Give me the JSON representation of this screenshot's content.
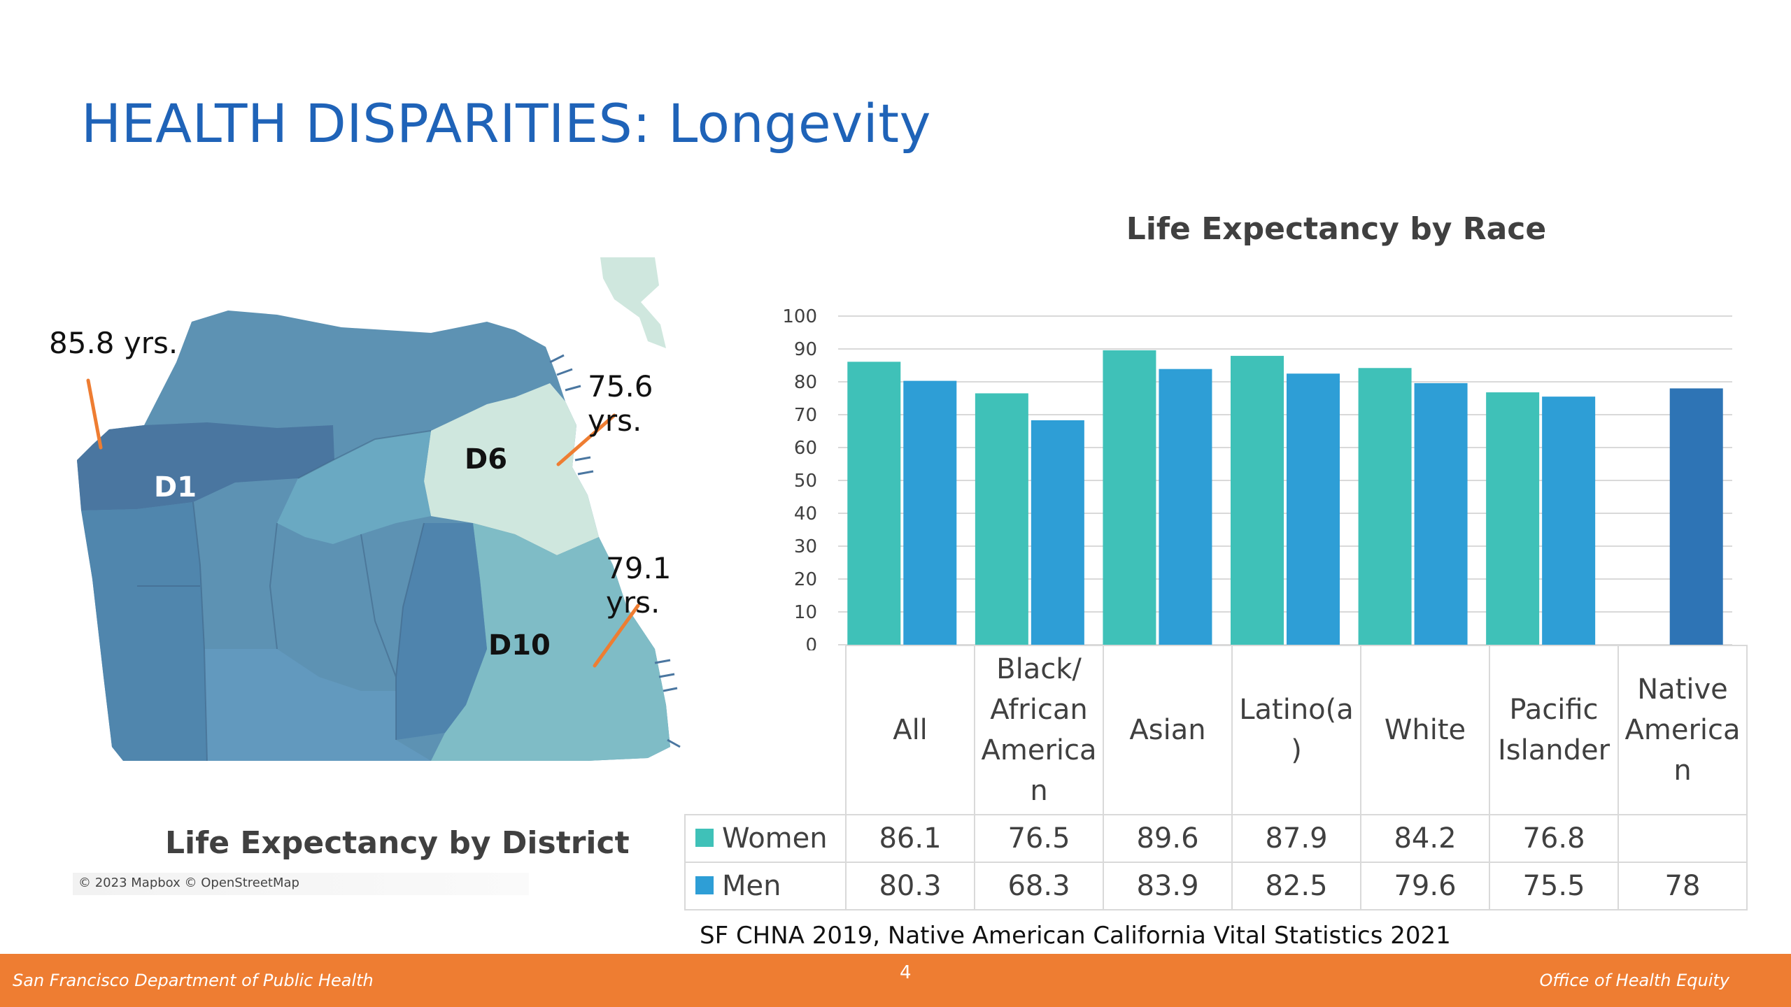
{
  "slide": {
    "title": "HEALTH DISPARITIES: Longevity",
    "page_number": "4",
    "source": "SF CHNA 2019, Native American California Vital Statistics 2021",
    "footer_left": "San Francisco Department of Public Health",
    "footer_right": "Office of Health Equity"
  },
  "map": {
    "caption": "Life Expectancy by District",
    "attribution": "© 2023 Mapbox  © OpenStreetMap",
    "districts": [
      "D1",
      "D6",
      "D10"
    ],
    "callouts": [
      "85.8 yrs.",
      "75.6 yrs.",
      "79.1 yrs."
    ],
    "colors": {
      "d1": "#4a76a0",
      "d6": "#cfe7de",
      "d10": "#7fbcc6",
      "mid": "#5d92b3",
      "light": "#6aa9c2"
    }
  },
  "chart_data": {
    "type": "bar",
    "title": "Life Expectancy by Race",
    "categories": [
      "All",
      "Black/\nAfrican\nAmerica\nn",
      "Asian",
      "Latino(a\n)",
      "White",
      "Pacific\nIslander",
      "Native\nAmerica\nn"
    ],
    "series": [
      {
        "name": "Women",
        "color": "#3fc1b8",
        "values": [
          86.1,
          76.5,
          89.6,
          87.9,
          84.2,
          76.8,
          null
        ]
      },
      {
        "name": "Men",
        "color": "#2e9ed6",
        "values": [
          80.3,
          68.3,
          83.9,
          82.5,
          79.6,
          75.5,
          78
        ]
      }
    ],
    "special_bar_color": "#2e74b5",
    "table_values": {
      "women": [
        "86.1",
        "76.5",
        "89.6",
        "87.9",
        "84.2",
        "76.8",
        ""
      ],
      "men": [
        "80.3",
        "68.3",
        "83.9",
        "82.5",
        "79.6",
        "75.5",
        "78"
      ]
    },
    "ylim": [
      0,
      100
    ],
    "yticks": [
      "0",
      "10",
      "20",
      "30",
      "40",
      "50",
      "60",
      "70",
      "80",
      "90",
      "100"
    ],
    "grid": true,
    "legend": "data-table"
  }
}
